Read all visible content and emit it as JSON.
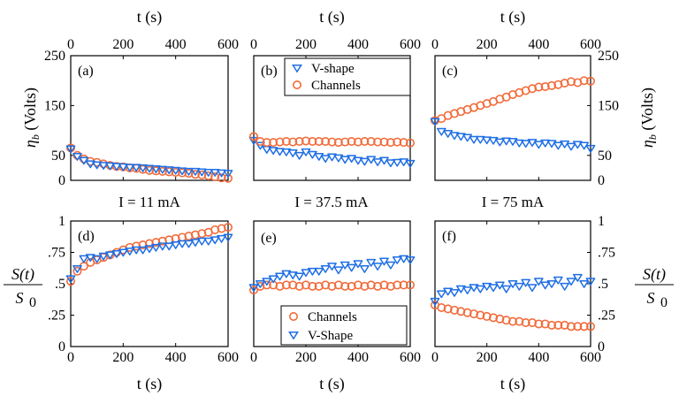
{
  "colors": {
    "channels": "#f26b3a",
    "vshape": "#1f6fe5"
  },
  "labels": {
    "t_axis": "t (s)",
    "eta_b": "ηb (Volts)",
    "eta_b_symbol": "η",
    "eta_b_sub": "b",
    "eta_b_unit": "(Volts)",
    "s_ratio_num": "S(t)",
    "s_ratio_den": "S",
    "s_ratio_den_sub": "0"
  },
  "conditions": [
    "I = 11 mA",
    "I = 37.5 mA",
    "I = 75 mA"
  ],
  "legend_top": {
    "v": "V-shape",
    "c": "Channels"
  },
  "legend_bottom": {
    "c": "Channels",
    "v": "V-Shape"
  },
  "chart_data": [
    {
      "panel": "(a)",
      "type": "scatter",
      "xlabel": "t (s)",
      "ylabel": "ηb (Volts)",
      "xlim": [
        0,
        600
      ],
      "ylim": [
        0,
        250
      ],
      "xticks": [
        0,
        200,
        400,
        600
      ],
      "yticks": [
        0,
        50,
        150,
        250
      ],
      "series": [
        {
          "key": "c",
          "marker": "circle",
          "x": [
            0,
            25,
            50,
            75,
            100,
            125,
            150,
            175,
            200,
            225,
            250,
            275,
            300,
            325,
            350,
            375,
            400,
            425,
            450,
            475,
            500,
            525,
            550,
            575,
            600
          ],
          "y": [
            65,
            50,
            43,
            38,
            36,
            33,
            30,
            28,
            27,
            25,
            24,
            22,
            20,
            19,
            18,
            17,
            16,
            15,
            14,
            12,
            11,
            9,
            7,
            5,
            4
          ]
        },
        {
          "key": "v",
          "marker": "triangle",
          "x": [
            0,
            25,
            50,
            75,
            100,
            125,
            150,
            175,
            200,
            225,
            250,
            275,
            300,
            325,
            350,
            375,
            400,
            425,
            450,
            475,
            500,
            525,
            550,
            575,
            600
          ],
          "y": [
            63,
            48,
            40,
            33,
            31,
            30,
            29,
            28,
            27,
            26,
            26,
            25,
            24,
            23,
            22,
            21,
            20,
            19,
            18,
            18,
            17,
            16,
            16,
            15,
            14
          ]
        }
      ]
    },
    {
      "panel": "(b)",
      "type": "scatter",
      "xlabel": "t (s)",
      "ylabel": "",
      "xlim": [
        0,
        600
      ],
      "ylim": [
        0,
        250
      ],
      "xticks": [
        0,
        200,
        400,
        600
      ],
      "yticks": [],
      "series": [
        {
          "key": "v",
          "name": "V-shape",
          "marker": "triangle",
          "x": [
            0,
            25,
            50,
            75,
            100,
            125,
            150,
            175,
            200,
            225,
            250,
            275,
            300,
            325,
            350,
            375,
            400,
            425,
            450,
            475,
            500,
            525,
            550,
            575,
            600
          ],
          "y": [
            80,
            70,
            62,
            60,
            58,
            57,
            55,
            50,
            57,
            52,
            48,
            44,
            47,
            45,
            42,
            44,
            40,
            38,
            42,
            37,
            40,
            35,
            36,
            37,
            34
          ]
        },
        {
          "key": "c",
          "name": "Channels",
          "marker": "circle",
          "x": [
            0,
            25,
            50,
            75,
            100,
            125,
            150,
            175,
            200,
            225,
            250,
            275,
            300,
            325,
            350,
            375,
            400,
            425,
            450,
            475,
            500,
            525,
            550,
            575,
            600
          ],
          "y": [
            88,
            78,
            76,
            76,
            77,
            78,
            77,
            78,
            79,
            78,
            78,
            78,
            77,
            76,
            77,
            78,
            77,
            78,
            78,
            77,
            77,
            76,
            77,
            76,
            75
          ]
        }
      ]
    },
    {
      "panel": "(c)",
      "type": "scatter",
      "xlabel": "t (s)",
      "ylabel": "ηb (Volts)",
      "xlim": [
        0,
        600
      ],
      "ylim": [
        0,
        250
      ],
      "xticks": [
        0,
        200,
        400,
        600
      ],
      "yticks": [
        0,
        50,
        150,
        250
      ],
      "yaxis": "right",
      "series": [
        {
          "key": "c",
          "marker": "circle",
          "x": [
            0,
            25,
            50,
            75,
            100,
            125,
            150,
            175,
            200,
            225,
            250,
            275,
            300,
            325,
            350,
            375,
            400,
            425,
            450,
            475,
            500,
            525,
            550,
            575,
            600
          ],
          "y": [
            120,
            124,
            130,
            134,
            138,
            142,
            146,
            150,
            154,
            158,
            163,
            167,
            172,
            176,
            180,
            184,
            187,
            188,
            190,
            192,
            195,
            198,
            196,
            200,
            199
          ]
        },
        {
          "key": "v",
          "marker": "triangle",
          "x": [
            0,
            25,
            50,
            75,
            100,
            125,
            150,
            175,
            200,
            225,
            250,
            275,
            300,
            325,
            350,
            375,
            400,
            425,
            450,
            475,
            500,
            525,
            550,
            575,
            600
          ],
          "y": [
            118,
            98,
            94,
            90,
            88,
            86,
            82,
            82,
            81,
            80,
            77,
            79,
            78,
            75,
            74,
            76,
            72,
            75,
            74,
            70,
            73,
            68,
            72,
            70,
            64
          ]
        }
      ]
    },
    {
      "panel": "(d)",
      "type": "scatter",
      "xlabel": "t (s)",
      "ylabel": "S(t)/S0",
      "xlim": [
        0,
        600
      ],
      "ylim": [
        0,
        1
      ],
      "xticks": [
        0,
        200,
        400,
        600
      ],
      "yticks": [
        0,
        0.25,
        0.5,
        0.75,
        1
      ],
      "series": [
        {
          "key": "c",
          "marker": "circle",
          "x": [
            0,
            25,
            50,
            75,
            100,
            125,
            150,
            175,
            200,
            225,
            250,
            275,
            300,
            325,
            350,
            375,
            400,
            425,
            450,
            475,
            500,
            525,
            550,
            575,
            600
          ],
          "y": [
            0.52,
            0.6,
            0.64,
            0.67,
            0.69,
            0.71,
            0.73,
            0.75,
            0.77,
            0.79,
            0.8,
            0.81,
            0.82,
            0.83,
            0.84,
            0.85,
            0.86,
            0.87,
            0.88,
            0.89,
            0.9,
            0.91,
            0.93,
            0.94,
            0.95
          ]
        },
        {
          "key": "v",
          "marker": "triangle",
          "x": [
            0,
            25,
            50,
            75,
            100,
            125,
            150,
            175,
            200,
            225,
            250,
            275,
            300,
            325,
            350,
            375,
            400,
            425,
            450,
            475,
            500,
            525,
            550,
            575,
            600
          ],
          "y": [
            0.54,
            0.62,
            0.7,
            0.71,
            0.7,
            0.72,
            0.73,
            0.74,
            0.75,
            0.76,
            0.77,
            0.77,
            0.78,
            0.79,
            0.8,
            0.8,
            0.81,
            0.82,
            0.82,
            0.83,
            0.84,
            0.84,
            0.85,
            0.86,
            0.87
          ]
        }
      ]
    },
    {
      "panel": "(e)",
      "type": "scatter",
      "xlabel": "t (s)",
      "ylabel": "",
      "xlim": [
        0,
        600
      ],
      "ylim": [
        0,
        1
      ],
      "xticks": [
        0,
        200,
        400,
        600
      ],
      "yticks": [],
      "series": [
        {
          "key": "c",
          "name": "Channels",
          "marker": "circle",
          "x": [
            0,
            25,
            50,
            75,
            100,
            125,
            150,
            175,
            200,
            225,
            250,
            275,
            300,
            325,
            350,
            375,
            400,
            425,
            450,
            475,
            500,
            525,
            550,
            575,
            600
          ],
          "y": [
            0.45,
            0.48,
            0.49,
            0.49,
            0.48,
            0.49,
            0.49,
            0.48,
            0.49,
            0.48,
            0.48,
            0.49,
            0.48,
            0.49,
            0.48,
            0.48,
            0.49,
            0.48,
            0.49,
            0.48,
            0.49,
            0.48,
            0.49,
            0.49,
            0.49
          ]
        },
        {
          "key": "v",
          "name": "V-Shape",
          "marker": "triangle",
          "x": [
            0,
            25,
            50,
            75,
            100,
            125,
            150,
            175,
            200,
            225,
            250,
            275,
            300,
            325,
            350,
            375,
            400,
            425,
            450,
            475,
            500,
            525,
            550,
            575,
            600
          ],
          "y": [
            0.47,
            0.5,
            0.52,
            0.54,
            0.56,
            0.58,
            0.57,
            0.56,
            0.59,
            0.6,
            0.6,
            0.62,
            0.64,
            0.61,
            0.65,
            0.63,
            0.66,
            0.62,
            0.67,
            0.64,
            0.68,
            0.65,
            0.69,
            0.7,
            0.69
          ]
        }
      ]
    },
    {
      "panel": "(f)",
      "type": "scatter",
      "xlabel": "t (s)",
      "ylabel": "S(t)/S0",
      "xlim": [
        0,
        600
      ],
      "ylim": [
        0,
        1
      ],
      "xticks": [
        0,
        200,
        400,
        600
      ],
      "yticks": [
        0,
        0.25,
        0.5,
        0.75,
        1
      ],
      "yaxis": "right",
      "series": [
        {
          "key": "c",
          "marker": "circle",
          "x": [
            0,
            25,
            50,
            75,
            100,
            125,
            150,
            175,
            200,
            225,
            250,
            275,
            300,
            325,
            350,
            375,
            400,
            425,
            450,
            475,
            500,
            525,
            550,
            575,
            600
          ],
          "y": [
            0.33,
            0.31,
            0.3,
            0.29,
            0.28,
            0.27,
            0.26,
            0.25,
            0.24,
            0.23,
            0.22,
            0.21,
            0.2,
            0.2,
            0.19,
            0.19,
            0.18,
            0.18,
            0.17,
            0.17,
            0.17,
            0.16,
            0.16,
            0.16,
            0.16
          ]
        },
        {
          "key": "v",
          "marker": "triangle",
          "x": [
            0,
            25,
            50,
            75,
            100,
            125,
            150,
            175,
            200,
            225,
            250,
            275,
            300,
            325,
            350,
            375,
            400,
            425,
            450,
            475,
            500,
            525,
            550,
            575,
            600
          ],
          "y": [
            0.36,
            0.42,
            0.44,
            0.43,
            0.46,
            0.45,
            0.47,
            0.46,
            0.48,
            0.47,
            0.49,
            0.46,
            0.5,
            0.48,
            0.51,
            0.47,
            0.52,
            0.49,
            0.5,
            0.53,
            0.48,
            0.52,
            0.55,
            0.5,
            0.52
          ]
        }
      ]
    }
  ]
}
